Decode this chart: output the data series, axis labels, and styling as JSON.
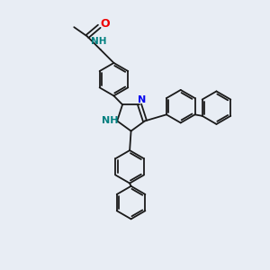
{
  "bg_color": "#e8edf4",
  "bond_color": "#1a1a1a",
  "N_color": "#0000ee",
  "NH_color": "#008080",
  "O_color": "#ee0000",
  "lw": 1.3,
  "figsize": [
    3.0,
    3.0
  ],
  "dpi": 100,
  "xlim": [
    0,
    10
  ],
  "ylim": [
    0,
    10
  ],
  "ring_r": 0.62,
  "double_sep": 0.09
}
